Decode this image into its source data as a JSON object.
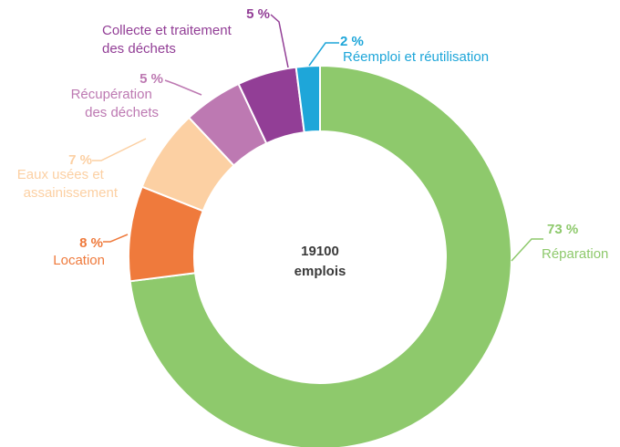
{
  "chart_data": {
    "type": "pie",
    "donut": true,
    "center_label": [
      "19100",
      "emplois"
    ],
    "slices": [
      {
        "label": "Réparation",
        "value": 73,
        "pct_text": "73 %",
        "color": "#8ec96c"
      },
      {
        "label": "Location",
        "value": 8,
        "pct_text": "8 %",
        "color": "#ef7a3c"
      },
      {
        "label": "Eaux usées et assainissement",
        "value": 7,
        "pct_text": "7 %",
        "color": "#fcd0a3"
      },
      {
        "label": "Récupération des déchets",
        "value": 5,
        "pct_text": "5 %",
        "color": "#bd79b2"
      },
      {
        "label": "Collecte et traitement des déchets",
        "value": 5,
        "pct_text": "5 %",
        "color": "#923e96"
      },
      {
        "label": "Réemploi et réutilisation",
        "value": 2,
        "pct_text": "2 %",
        "color": "#1ea6d9"
      }
    ]
  }
}
